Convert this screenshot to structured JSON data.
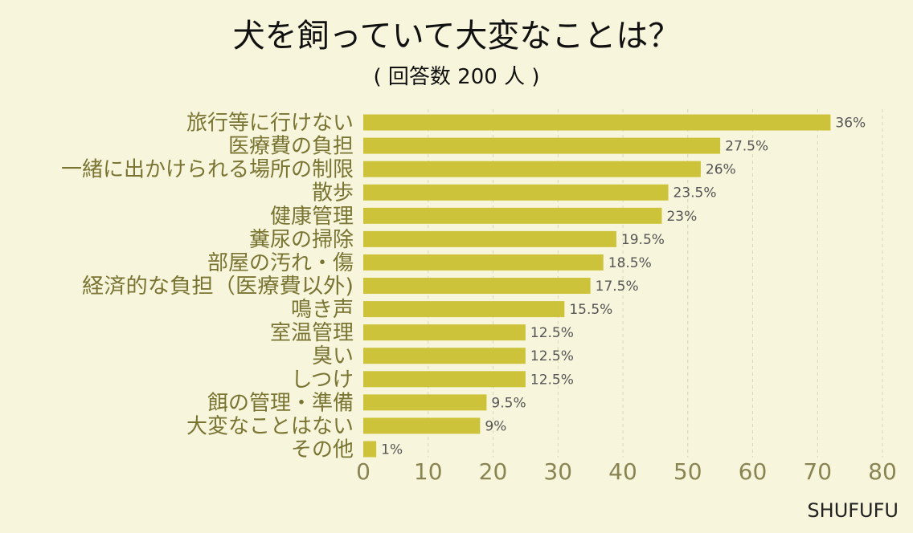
{
  "title": "犬を飼っていて大変なことは？",
  "subtitle": "( 回答数 200 人 )",
  "brand": "SHUFUFU",
  "colors": {
    "bar": "#cdc33a",
    "background": "#f7f6dc",
    "label": "#7a7433"
  },
  "chart_data": {
    "type": "bar",
    "orientation": "horizontal",
    "categories": [
      "旅行等に行けない",
      "医療費の負担",
      "一緒に出かけられる場所の制限",
      "散歩",
      "健康管理",
      "糞尿の掃除",
      "部屋の汚れ・傷",
      "経済的な負担（医療費以外)",
      "鳴き声",
      "室温管理",
      "臭い",
      "しつけ",
      "餌の管理・準備",
      "大変なことはない",
      "その他"
    ],
    "values": [
      72,
      55,
      52,
      47,
      46,
      39,
      37,
      35,
      31,
      25,
      25,
      25,
      19,
      18,
      2
    ],
    "data_labels": [
      "36%",
      "27.5%",
      "26%",
      "23.5%",
      "23%",
      "19.5%",
      "18.5%",
      "17.5%",
      "15.5%",
      "12.5%",
      "12.5%",
      "12.5%",
      "9.5%",
      "9%",
      "1%"
    ],
    "xlim": [
      0,
      80
    ],
    "xticks": [
      0,
      10,
      20,
      30,
      40,
      50,
      60,
      70,
      80
    ],
    "grid": true,
    "legend": "none"
  }
}
